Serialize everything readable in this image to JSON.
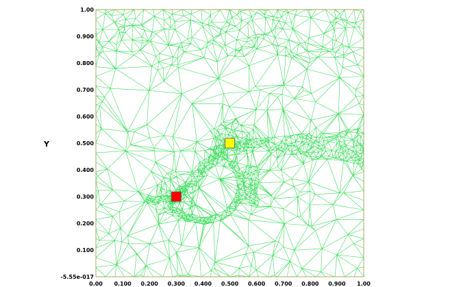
{
  "chart_data": {
    "type": "mesh",
    "ylabel": "Y",
    "xlim": [
      0,
      1
    ],
    "ylim": [
      0,
      1
    ],
    "x_ticks": [
      "0.00",
      "0.100",
      "0.200",
      "0.300",
      "0.400",
      "0.500",
      "0.600",
      "0.700",
      "0.800",
      "0.900",
      "1.00"
    ],
    "y_ticks": [
      "-5.55e-017",
      "0.100",
      "0.200",
      "0.300",
      "0.400",
      "0.500",
      "0.600",
      "0.700",
      "0.800",
      "0.900",
      "1.00"
    ],
    "markers": [
      {
        "name": "red-marker",
        "x": 0.3,
        "y": 0.3,
        "color": "#ff0000"
      },
      {
        "name": "yellow-marker",
        "x": 0.5,
        "y": 0.5,
        "color": "#ffff00"
      }
    ],
    "colors": {
      "mesh": "#33dd55",
      "frame": "#a8a85a"
    }
  }
}
